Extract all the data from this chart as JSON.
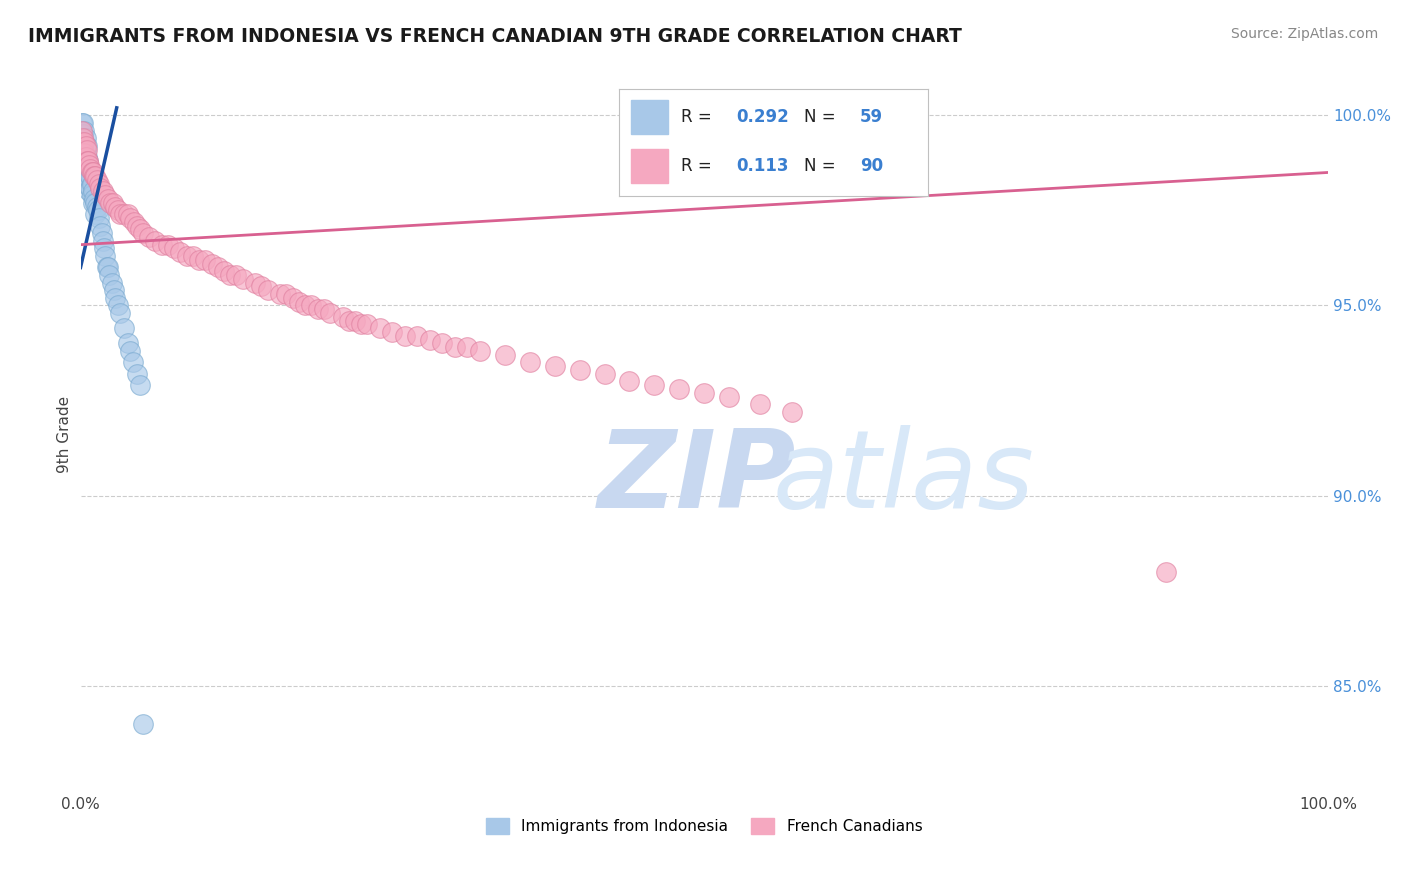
{
  "title": "IMMIGRANTS FROM INDONESIA VS FRENCH CANADIAN 9TH GRADE CORRELATION CHART",
  "source": "Source: ZipAtlas.com",
  "ylabel": "9th Grade",
  "ytick_labels": [
    "85.0%",
    "90.0%",
    "95.0%",
    "100.0%"
  ],
  "ytick_values": [
    0.85,
    0.9,
    0.95,
    1.0
  ],
  "xmin": 0.0,
  "xmax": 1.0,
  "ymin": 0.822,
  "ymax": 1.01,
  "legend_r_blue": "0.292",
  "legend_n_blue": "59",
  "legend_r_pink": "0.113",
  "legend_n_pink": "90",
  "blue_color": "#a8c8e8",
  "pink_color": "#f5a8c0",
  "blue_line_color": "#1a4fa0",
  "pink_line_color": "#d86090",
  "watermark_zip_color": "#c8d8f0",
  "watermark_atlas_color": "#d8e8f8",
  "blue_points_x": [
    0.001,
    0.001,
    0.001,
    0.002,
    0.002,
    0.002,
    0.002,
    0.003,
    0.003,
    0.003,
    0.003,
    0.003,
    0.004,
    0.004,
    0.004,
    0.004,
    0.004,
    0.005,
    0.005,
    0.005,
    0.005,
    0.006,
    0.006,
    0.006,
    0.007,
    0.007,
    0.007,
    0.008,
    0.008,
    0.009,
    0.009,
    0.01,
    0.01,
    0.011,
    0.012,
    0.012,
    0.013,
    0.014,
    0.015,
    0.016,
    0.017,
    0.018,
    0.019,
    0.02,
    0.021,
    0.022,
    0.023,
    0.025,
    0.027,
    0.028,
    0.03,
    0.032,
    0.035,
    0.038,
    0.04,
    0.042,
    0.045,
    0.048,
    0.05
  ],
  "blue_points_y": [
    0.998,
    0.994,
    0.99,
    0.998,
    0.995,
    0.992,
    0.988,
    0.996,
    0.993,
    0.99,
    0.987,
    0.984,
    0.994,
    0.991,
    0.988,
    0.985,
    0.982,
    0.992,
    0.989,
    0.986,
    0.983,
    0.988,
    0.985,
    0.982,
    0.986,
    0.983,
    0.98,
    0.984,
    0.981,
    0.982,
    0.979,
    0.98,
    0.977,
    0.978,
    0.977,
    0.974,
    0.976,
    0.975,
    0.973,
    0.971,
    0.969,
    0.967,
    0.965,
    0.963,
    0.96,
    0.96,
    0.958,
    0.956,
    0.954,
    0.952,
    0.95,
    0.948,
    0.944,
    0.94,
    0.938,
    0.935,
    0.932,
    0.929,
    0.84
  ],
  "pink_points_x": [
    0.001,
    0.001,
    0.002,
    0.002,
    0.003,
    0.003,
    0.004,
    0.004,
    0.005,
    0.005,
    0.006,
    0.007,
    0.008,
    0.009,
    0.01,
    0.011,
    0.012,
    0.013,
    0.015,
    0.016,
    0.018,
    0.02,
    0.022,
    0.024,
    0.026,
    0.028,
    0.03,
    0.032,
    0.035,
    0.038,
    0.04,
    0.043,
    0.045,
    0.048,
    0.05,
    0.055,
    0.06,
    0.065,
    0.07,
    0.075,
    0.08,
    0.085,
    0.09,
    0.095,
    0.1,
    0.105,
    0.11,
    0.115,
    0.12,
    0.125,
    0.13,
    0.14,
    0.145,
    0.15,
    0.16,
    0.165,
    0.17,
    0.175,
    0.18,
    0.185,
    0.19,
    0.195,
    0.2,
    0.21,
    0.215,
    0.22,
    0.225,
    0.23,
    0.24,
    0.25,
    0.26,
    0.27,
    0.28,
    0.29,
    0.3,
    0.31,
    0.32,
    0.34,
    0.36,
    0.38,
    0.4,
    0.42,
    0.44,
    0.46,
    0.48,
    0.5,
    0.52,
    0.545,
    0.57,
    0.87
  ],
  "pink_points_y": [
    0.996,
    0.993,
    0.994,
    0.991,
    0.993,
    0.99,
    0.992,
    0.989,
    0.991,
    0.988,
    0.988,
    0.987,
    0.986,
    0.985,
    0.985,
    0.984,
    0.984,
    0.983,
    0.982,
    0.981,
    0.98,
    0.979,
    0.978,
    0.977,
    0.977,
    0.976,
    0.975,
    0.974,
    0.974,
    0.974,
    0.973,
    0.972,
    0.971,
    0.97,
    0.969,
    0.968,
    0.967,
    0.966,
    0.966,
    0.965,
    0.964,
    0.963,
    0.963,
    0.962,
    0.962,
    0.961,
    0.96,
    0.959,
    0.958,
    0.958,
    0.957,
    0.956,
    0.955,
    0.954,
    0.953,
    0.953,
    0.952,
    0.951,
    0.95,
    0.95,
    0.949,
    0.949,
    0.948,
    0.947,
    0.946,
    0.946,
    0.945,
    0.945,
    0.944,
    0.943,
    0.942,
    0.942,
    0.941,
    0.94,
    0.939,
    0.939,
    0.938,
    0.937,
    0.935,
    0.934,
    0.933,
    0.932,
    0.93,
    0.929,
    0.928,
    0.927,
    0.926,
    0.924,
    0.922,
    0.88
  ],
  "blue_line_x0": 0.0,
  "blue_line_y0": 0.96,
  "blue_line_x1": 0.029,
  "blue_line_y1": 1.002,
  "pink_line_x0": 0.0,
  "pink_line_y0": 0.966,
  "pink_line_x1": 1.0,
  "pink_line_y1": 0.985
}
